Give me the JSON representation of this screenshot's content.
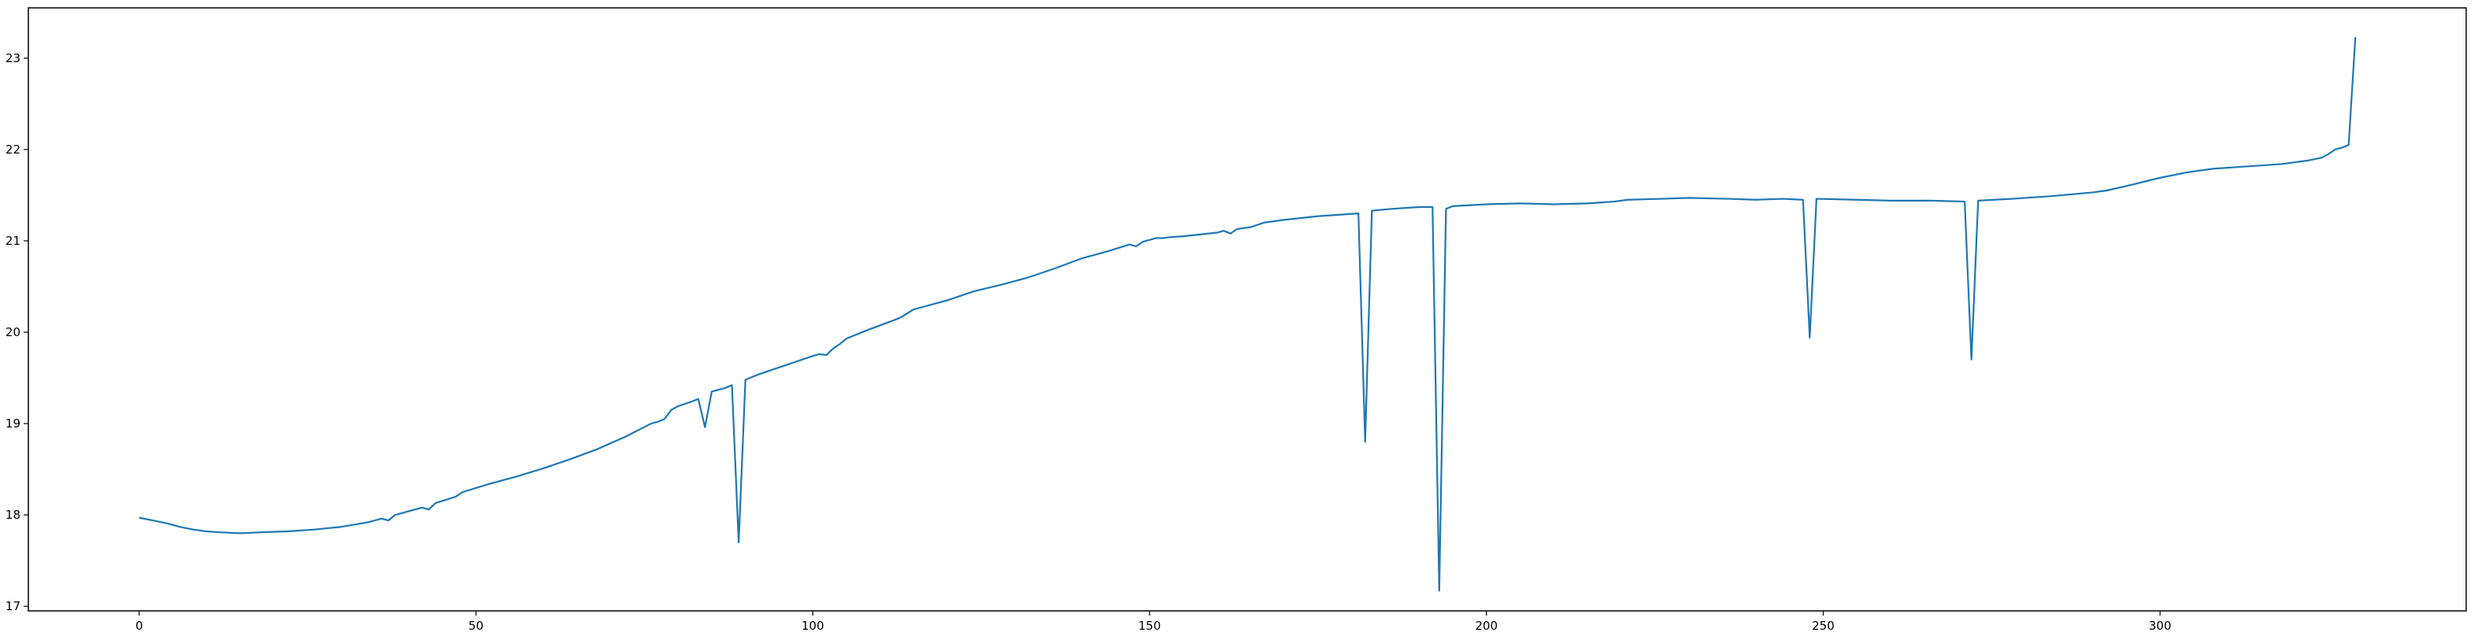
{
  "chart_data": {
    "type": "line",
    "title": "",
    "xlabel": "",
    "ylabel": "",
    "xlim": [
      -16.45,
      345.45
    ],
    "ylim": [
      16.95,
      23.55
    ],
    "x_ticks": [
      0,
      50,
      100,
      150,
      200,
      250,
      300
    ],
    "y_ticks": [
      17,
      18,
      19,
      20,
      21,
      22,
      23
    ],
    "grid": false,
    "legend": "none",
    "series": [
      {
        "color": "#1f77b4",
        "points": [
          [
            0,
            17.97
          ],
          [
            2,
            17.94
          ],
          [
            4,
            17.91
          ],
          [
            6,
            17.87
          ],
          [
            8,
            17.84
          ],
          [
            10,
            17.82
          ],
          [
            12,
            17.81
          ],
          [
            15,
            17.8
          ],
          [
            18,
            17.81
          ],
          [
            22,
            17.82
          ],
          [
            26,
            17.84
          ],
          [
            30,
            17.87
          ],
          [
            34,
            17.92
          ],
          [
            36,
            17.96
          ],
          [
            37,
            17.94
          ],
          [
            38,
            18.0
          ],
          [
            40,
            18.04
          ],
          [
            42,
            18.08
          ],
          [
            43,
            18.06
          ],
          [
            44,
            18.13
          ],
          [
            47,
            18.2
          ],
          [
            48,
            18.25
          ],
          [
            52,
            18.34
          ],
          [
            56,
            18.42
          ],
          [
            60,
            18.51
          ],
          [
            64,
            18.61
          ],
          [
            68,
            18.72
          ],
          [
            72,
            18.85
          ],
          [
            76,
            19.0
          ],
          [
            77,
            19.02
          ],
          [
            78,
            19.05
          ],
          [
            79,
            19.15
          ],
          [
            80,
            19.19
          ],
          [
            82,
            19.24
          ],
          [
            83,
            19.27
          ],
          [
            84,
            18.96
          ],
          [
            85,
            19.35
          ],
          [
            87,
            19.39
          ],
          [
            88,
            19.42
          ],
          [
            89,
            17.7
          ],
          [
            90,
            19.48
          ],
          [
            92,
            19.54
          ],
          [
            96,
            19.64
          ],
          [
            100,
            19.74
          ],
          [
            101,
            19.76
          ],
          [
            102,
            19.75
          ],
          [
            103,
            19.82
          ],
          [
            104,
            19.87
          ],
          [
            105,
            19.93
          ],
          [
            108,
            20.02
          ],
          [
            112,
            20.13
          ],
          [
            113,
            20.16
          ],
          [
            115,
            20.25
          ],
          [
            120,
            20.35
          ],
          [
            124,
            20.45
          ],
          [
            128,
            20.52
          ],
          [
            132,
            20.6
          ],
          [
            136,
            20.7
          ],
          [
            140,
            20.81
          ],
          [
            144,
            20.89
          ],
          [
            147,
            20.96
          ],
          [
            148,
            20.94
          ],
          [
            149,
            20.99
          ],
          [
            151,
            21.03
          ],
          [
            152,
            21.03
          ],
          [
            153,
            21.04
          ],
          [
            155,
            21.05
          ],
          [
            160,
            21.09
          ],
          [
            161,
            21.11
          ],
          [
            162,
            21.08
          ],
          [
            163,
            21.13
          ],
          [
            165,
            21.15
          ],
          [
            167,
            21.2
          ],
          [
            170,
            21.23
          ],
          [
            175,
            21.27
          ],
          [
            181,
            21.3
          ],
          [
            182,
            18.8
          ],
          [
            183,
            21.33
          ],
          [
            186,
            21.35
          ],
          [
            190,
            21.37
          ],
          [
            192,
            21.37
          ],
          [
            193,
            17.17
          ],
          [
            194,
            21.35
          ],
          [
            195,
            21.38
          ],
          [
            200,
            21.4
          ],
          [
            205,
            21.41
          ],
          [
            210,
            21.4
          ],
          [
            215,
            21.41
          ],
          [
            219,
            21.43
          ],
          [
            221,
            21.45
          ],
          [
            226,
            21.46
          ],
          [
            230,
            21.47
          ],
          [
            236,
            21.46
          ],
          [
            240,
            21.45
          ],
          [
            244,
            21.46
          ],
          [
            247,
            21.45
          ],
          [
            248,
            19.94
          ],
          [
            249,
            21.46
          ],
          [
            255,
            21.45
          ],
          [
            260,
            21.44
          ],
          [
            266,
            21.44
          ],
          [
            271,
            21.43
          ],
          [
            272,
            19.7
          ],
          [
            273,
            21.44
          ],
          [
            278,
            21.46
          ],
          [
            284,
            21.49
          ],
          [
            290,
            21.53
          ],
          [
            292,
            21.55
          ],
          [
            295,
            21.6
          ],
          [
            300,
            21.69
          ],
          [
            304,
            21.75
          ],
          [
            308,
            21.79
          ],
          [
            312,
            21.81
          ],
          [
            318,
            21.84
          ],
          [
            322,
            21.88
          ],
          [
            324,
            21.91
          ],
          [
            325,
            21.95
          ],
          [
            326,
            22.0
          ],
          [
            327,
            22.02
          ],
          [
            328,
            22.05
          ],
          [
            329,
            23.23
          ]
        ]
      }
    ]
  }
}
